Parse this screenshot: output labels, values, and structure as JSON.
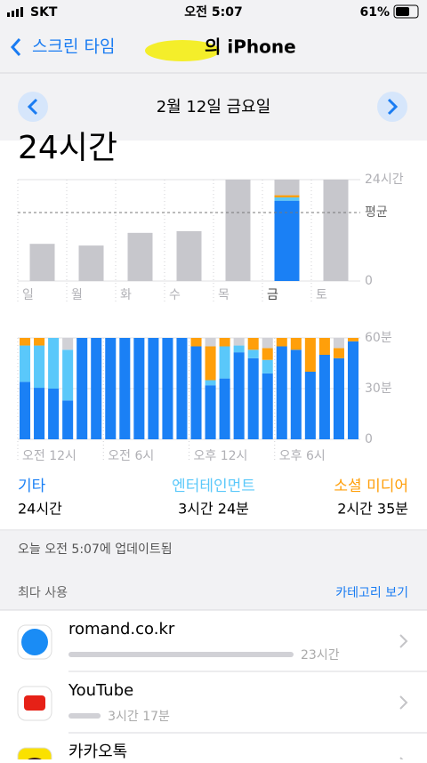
{
  "status_bar": {
    "carrier": "SKT",
    "time": "오전 5:07",
    "battery": "61%"
  },
  "nav": {
    "back": "스크린 타임",
    "title": "의 iPhone"
  },
  "date": "2월 12일 금요일",
  "total": "24시간",
  "chart_data": [
    {
      "type": "bar",
      "categories": [
        "일",
        "월",
        "화",
        "수",
        "목",
        "금",
        "토"
      ],
      "values": [
        8.8,
        8.4,
        11.4,
        11.8,
        24,
        24,
        24
      ],
      "color": "#c7c7cc",
      "ylim": [
        0,
        24
      ],
      "yticks": [
        0,
        {
          "value": 24,
          "label": "24시간"
        }
      ],
      "average": {
        "value": 16.2,
        "label": "평균"
      },
      "selected": "금",
      "selected_values": [
        19,
        0.8,
        0.5
      ]
    },
    {
      "type": "stacked-bar",
      "categories": [
        "오전 12시",
        null,
        null,
        null,
        null,
        null,
        "오전 6시",
        null,
        null,
        null,
        null,
        null,
        "오후 12시",
        null,
        null,
        null,
        null,
        null,
        "오후 6시",
        null,
        null,
        null,
        null,
        null
      ],
      "ylim": [
        0,
        60
      ],
      "yticks": [
        0,
        {
          "value": 30,
          "label": "30분"
        },
        {
          "value": 60,
          "label": "60분"
        }
      ],
      "series": [
        {
          "name": "기타",
          "total": "24시간",
          "color": "#1a80f5",
          "values": [
            34,
            30.5,
            30,
            23,
            60,
            60,
            60,
            60,
            60,
            60,
            60,
            60,
            55,
            32,
            36,
            51.5,
            48,
            39,
            55,
            53,
            40,
            50,
            48,
            58
          ]
        },
        {
          "name": "엔터테인먼트",
          "total": "3시간 24분",
          "color": "#5ac8fa",
          "values": [
            21.5,
            25,
            30,
            30,
            0,
            0,
            0,
            0,
            0,
            0,
            0,
            0,
            0,
            3,
            19,
            4,
            5,
            8,
            0,
            0,
            0,
            0,
            0,
            0
          ]
        },
        {
          "name": "소셜 미디어",
          "total": "2시간 35분",
          "color": "#ff9f0a",
          "values": [
            4.5,
            4.5,
            0,
            0,
            0,
            0,
            0,
            0,
            0,
            0,
            0,
            0,
            5,
            20,
            5,
            0,
            7,
            7,
            5,
            7,
            20,
            10,
            6,
            2
          ]
        },
        {
          "color": "#d1d1d6",
          "values": [
            0,
            0,
            0,
            7,
            0,
            0,
            0,
            0,
            0,
            0,
            0,
            0,
            0,
            5,
            0,
            4.5,
            0,
            6,
            0,
            0,
            0,
            0,
            6,
            0
          ]
        }
      ]
    }
  ],
  "updated": "오늘 오전 5:07에 업데이트됨",
  "most_used": {
    "title": "최다 사용",
    "link": "카테고리 보기"
  },
  "apps": [
    {
      "name": "romand.co.kr",
      "time": "23시간",
      "minutes": 1380
    },
    {
      "name": "YouTube",
      "time": "3시간 17분",
      "minutes": 197
    },
    {
      "name": "카카오톡"
    }
  ]
}
